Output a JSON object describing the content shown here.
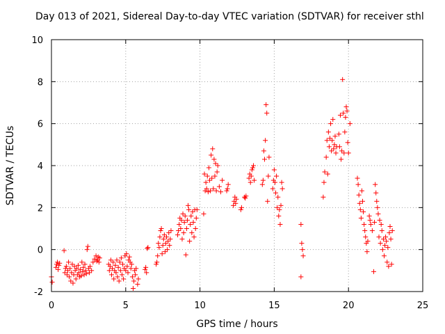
{
  "chart_data": {
    "type": "scatter",
    "title": "Day 013 of 2021, Sidereal Day-to-day VTEC variation (SDTVAR) for receiver sthl",
    "xlabel": "GPS time / hours",
    "ylabel": "SDTVAR / TECUs",
    "xlim": [
      0,
      25
    ],
    "ylim": [
      -2,
      10
    ],
    "xticks": [
      0,
      5,
      10,
      15,
      20,
      25
    ],
    "yticks": [
      -2,
      0,
      2,
      4,
      6,
      8,
      10
    ],
    "grid": true,
    "marker": "+",
    "marker_color": "#ff0000",
    "series": [
      {
        "name": "SDTVAR",
        "points": [
          [
            0.0,
            -1.3
          ],
          [
            0.05,
            -1.55
          ],
          [
            0.3,
            -0.85
          ],
          [
            0.35,
            -0.7
          ],
          [
            0.4,
            -0.6
          ],
          [
            0.45,
            -0.95
          ],
          [
            0.5,
            -0.75
          ],
          [
            0.55,
            -0.65
          ],
          [
            0.85,
            -0.05
          ],
          [
            0.9,
            -1.1
          ],
          [
            0.95,
            -0.9
          ],
          [
            1.0,
            -0.8
          ],
          [
            1.05,
            -1.2
          ],
          [
            1.1,
            -1.0
          ],
          [
            1.15,
            -0.6
          ],
          [
            1.2,
            -1.3
          ],
          [
            1.25,
            -0.9
          ],
          [
            1.3,
            -1.5
          ],
          [
            1.35,
            -1.1
          ],
          [
            1.4,
            -0.7
          ],
          [
            1.45,
            -1.6
          ],
          [
            1.5,
            -1.2
          ],
          [
            1.55,
            -0.8
          ],
          [
            1.6,
            -1.0
          ],
          [
            1.65,
            -1.4
          ],
          [
            1.7,
            -0.9
          ],
          [
            1.75,
            -1.2
          ],
          [
            1.8,
            -0.75
          ],
          [
            1.85,
            -1.1
          ],
          [
            1.9,
            -1.3
          ],
          [
            1.95,
            -0.95
          ],
          [
            2.0,
            -1.25
          ],
          [
            2.05,
            -0.6
          ],
          [
            2.1,
            -1.05
          ],
          [
            2.15,
            -0.85
          ],
          [
            2.2,
            -1.2
          ],
          [
            2.25,
            -0.7
          ],
          [
            2.3,
            -1.0
          ],
          [
            2.35,
            -1.15
          ],
          [
            2.4,
            0.0
          ],
          [
            2.45,
            0.15
          ],
          [
            2.5,
            -0.9
          ],
          [
            2.55,
            -1.1
          ],
          [
            2.6,
            -0.8
          ],
          [
            2.7,
            -1.0
          ],
          [
            2.8,
            -0.6
          ],
          [
            2.9,
            -0.45
          ],
          [
            3.0,
            -0.3
          ],
          [
            3.05,
            -0.55
          ],
          [
            3.1,
            -0.5
          ],
          [
            3.15,
            -0.35
          ],
          [
            3.2,
            -0.6
          ],
          [
            3.25,
            -0.4
          ],
          [
            3.85,
            -0.7
          ],
          [
            3.9,
            -1.0
          ],
          [
            3.95,
            -0.8
          ],
          [
            4.0,
            -0.5
          ],
          [
            4.05,
            -1.2
          ],
          [
            4.1,
            -0.9
          ],
          [
            4.15,
            -0.6
          ],
          [
            4.2,
            -1.4
          ],
          [
            4.25,
            -1.0
          ],
          [
            4.3,
            -0.75
          ],
          [
            4.35,
            -1.1
          ],
          [
            4.4,
            -0.5
          ],
          [
            4.45,
            -1.3
          ],
          [
            4.5,
            -0.85
          ],
          [
            4.55,
            -1.5
          ],
          [
            4.6,
            -0.6
          ],
          [
            4.65,
            -1.0
          ],
          [
            4.7,
            -0.4
          ],
          [
            4.75,
            -1.2
          ],
          [
            4.8,
            -0.7
          ],
          [
            4.85,
            -1.4
          ],
          [
            4.9,
            -0.9
          ],
          [
            4.95,
            -0.3
          ],
          [
            5.0,
            -1.0
          ],
          [
            5.05,
            -0.2
          ],
          [
            5.1,
            -0.8
          ],
          [
            5.15,
            -1.1
          ],
          [
            5.2,
            -0.5
          ],
          [
            5.25,
            -0.35
          ],
          [
            5.3,
            -0.6
          ],
          [
            5.35,
            -0.9
          ],
          [
            5.4,
            -0.7
          ],
          [
            5.45,
            -1.3
          ],
          [
            5.5,
            -1.85
          ],
          [
            5.55,
            -1.5
          ],
          [
            5.6,
            -1.0
          ],
          [
            5.65,
            -1.2
          ],
          [
            5.7,
            -0.9
          ],
          [
            5.8,
            -1.65
          ],
          [
            5.85,
            -1.4
          ],
          [
            6.3,
            -0.95
          ],
          [
            6.35,
            -0.85
          ],
          [
            6.4,
            -1.1
          ],
          [
            6.45,
            0.05
          ],
          [
            6.5,
            0.1
          ],
          [
            7.05,
            -0.7
          ],
          [
            7.1,
            -0.6
          ],
          [
            7.15,
            -0.3
          ],
          [
            7.2,
            0.3
          ],
          [
            7.25,
            0.1
          ],
          [
            7.3,
            0.6
          ],
          [
            7.35,
            0.9
          ],
          [
            7.4,
            1.0
          ],
          [
            7.45,
            -0.2
          ],
          [
            7.5,
            0.2
          ],
          [
            7.55,
            0.5
          ],
          [
            7.6,
            0.7
          ],
          [
            7.65,
            -0.1
          ],
          [
            7.7,
            0.3
          ],
          [
            7.75,
            0.6
          ],
          [
            7.8,
            0.0
          ],
          [
            7.85,
            0.4
          ],
          [
            7.9,
            0.8
          ],
          [
            7.95,
            0.2
          ],
          [
            8.0,
            0.5
          ],
          [
            8.05,
            0.9
          ],
          [
            8.5,
            0.7
          ],
          [
            8.55,
            0.9
          ],
          [
            8.6,
            1.2
          ],
          [
            8.65,
            1.5
          ],
          [
            8.7,
            1.0
          ],
          [
            8.75,
            1.4
          ],
          [
            8.8,
            0.5
          ],
          [
            8.85,
            1.7
          ],
          [
            8.9,
            0.8
          ],
          [
            8.95,
            1.3
          ],
          [
            9.0,
            1.6
          ],
          [
            9.05,
            -0.25
          ],
          [
            9.1,
            1.0
          ],
          [
            9.15,
            1.4
          ],
          [
            9.2,
            2.1
          ],
          [
            9.25,
            1.9
          ],
          [
            9.3,
            0.4
          ],
          [
            9.35,
            1.2
          ],
          [
            9.4,
            1.6
          ],
          [
            9.45,
            0.8
          ],
          [
            9.5,
            1.8
          ],
          [
            9.55,
            1.3
          ],
          [
            9.6,
            0.6
          ],
          [
            9.65,
            1.9
          ],
          [
            9.7,
            1.0
          ],
          [
            9.75,
            1.5
          ],
          [
            9.8,
            1.9
          ],
          [
            10.25,
            1.7
          ],
          [
            10.3,
            3.6
          ],
          [
            10.35,
            2.8
          ],
          [
            10.4,
            3.2
          ],
          [
            10.45,
            2.9
          ],
          [
            10.5,
            3.5
          ],
          [
            10.55,
            2.75
          ],
          [
            10.6,
            3.9
          ],
          [
            10.65,
            3.3
          ],
          [
            10.7,
            2.8
          ],
          [
            10.75,
            4.5
          ],
          [
            10.8,
            3.4
          ],
          [
            10.85,
            4.8
          ],
          [
            10.9,
            2.9
          ],
          [
            10.95,
            4.3
          ],
          [
            11.0,
            3.5
          ],
          [
            11.05,
            4.1
          ],
          [
            11.1,
            2.8
          ],
          [
            11.15,
            3.7
          ],
          [
            11.2,
            4.0
          ],
          [
            11.3,
            3.0
          ],
          [
            11.4,
            2.75
          ],
          [
            11.5,
            3.3
          ],
          [
            11.8,
            2.8
          ],
          [
            11.85,
            2.9
          ],
          [
            11.9,
            3.1
          ],
          [
            12.25,
            2.1
          ],
          [
            12.3,
            2.3
          ],
          [
            12.35,
            2.5
          ],
          [
            12.4,
            2.2
          ],
          [
            12.45,
            2.4
          ],
          [
            12.75,
            1.9
          ],
          [
            12.8,
            2.0
          ],
          [
            13.0,
            2.5
          ],
          [
            13.05,
            2.45
          ],
          [
            13.1,
            2.55
          ],
          [
            13.3,
            3.4
          ],
          [
            13.35,
            3.6
          ],
          [
            13.4,
            3.2
          ],
          [
            13.45,
            3.5
          ],
          [
            13.5,
            3.8
          ],
          [
            13.55,
            3.9
          ],
          [
            13.6,
            4.0
          ],
          [
            13.65,
            3.3
          ],
          [
            14.2,
            3.1
          ],
          [
            14.25,
            3.3
          ],
          [
            14.3,
            4.7
          ],
          [
            14.35,
            4.3
          ],
          [
            14.4,
            5.2
          ],
          [
            14.45,
            6.9
          ],
          [
            14.5,
            6.5
          ],
          [
            14.55,
            2.3
          ],
          [
            14.6,
            3.5
          ],
          [
            14.65,
            4.4
          ],
          [
            14.9,
            2.9
          ],
          [
            14.95,
            3.3
          ],
          [
            15.0,
            3.8
          ],
          [
            15.05,
            3.2
          ],
          [
            15.1,
            2.7
          ],
          [
            15.15,
            3.5
          ],
          [
            15.2,
            2.0
          ],
          [
            15.25,
            2.5
          ],
          [
            15.3,
            1.6
          ],
          [
            15.35,
            1.9
          ],
          [
            15.4,
            1.2
          ],
          [
            15.45,
            2.1
          ],
          [
            15.5,
            3.2
          ],
          [
            15.55,
            2.9
          ],
          [
            16.8,
            1.2
          ],
          [
            16.85,
            0.3
          ],
          [
            16.9,
            0.0
          ],
          [
            16.95,
            -0.3
          ],
          [
            16.8,
            -1.3
          ],
          [
            18.3,
            2.5
          ],
          [
            18.35,
            3.2
          ],
          [
            18.4,
            3.7
          ],
          [
            18.5,
            4.4
          ],
          [
            18.55,
            5.2
          ],
          [
            18.6,
            3.6
          ],
          [
            18.65,
            5.6
          ],
          [
            18.7,
            4.9
          ],
          [
            18.75,
            5.3
          ],
          [
            18.8,
            6.0
          ],
          [
            18.85,
            4.7
          ],
          [
            18.9,
            5.2
          ],
          [
            18.95,
            6.2
          ],
          [
            19.0,
            4.8
          ],
          [
            19.05,
            5.0
          ],
          [
            19.1,
            5.4
          ],
          [
            19.15,
            4.6
          ],
          [
            19.2,
            4.9
          ],
          [
            19.35,
            5.5
          ],
          [
            19.4,
            4.9
          ],
          [
            19.45,
            6.4
          ],
          [
            19.5,
            4.3
          ],
          [
            19.55,
            4.7
          ],
          [
            19.6,
            8.1
          ],
          [
            19.65,
            6.5
          ],
          [
            19.7,
            4.6
          ],
          [
            19.75,
            5.6
          ],
          [
            19.8,
            6.3
          ],
          [
            19.85,
            6.8
          ],
          [
            19.9,
            6.6
          ],
          [
            19.95,
            5.1
          ],
          [
            20.0,
            4.6
          ],
          [
            20.1,
            6.0
          ],
          [
            20.6,
            3.4
          ],
          [
            20.65,
            3.1
          ],
          [
            20.7,
            2.6
          ],
          [
            20.75,
            2.2
          ],
          [
            20.8,
            1.9
          ],
          [
            20.85,
            1.5
          ],
          [
            20.9,
            2.8
          ],
          [
            20.95,
            2.3
          ],
          [
            21.0,
            1.8
          ],
          [
            21.05,
            1.2
          ],
          [
            21.1,
            0.9
          ],
          [
            21.15,
            0.6
          ],
          [
            21.2,
            0.3
          ],
          [
            21.25,
            -0.1
          ],
          [
            21.3,
            0.4
          ],
          [
            21.4,
            1.6
          ],
          [
            21.45,
            1.4
          ],
          [
            21.5,
            1.2
          ],
          [
            21.6,
            0.9
          ],
          [
            21.7,
            -1.05
          ],
          [
            21.75,
            1.3
          ],
          [
            21.8,
            3.1
          ],
          [
            21.85,
            2.7
          ],
          [
            21.9,
            2.3
          ],
          [
            21.95,
            2.0
          ],
          [
            22.0,
            1.7
          ],
          [
            22.05,
            0.6
          ],
          [
            22.1,
            1.4
          ],
          [
            22.15,
            0.3
          ],
          [
            22.2,
            1.2
          ],
          [
            22.25,
            0.9
          ],
          [
            22.3,
            0.0
          ],
          [
            22.35,
            0.5
          ],
          [
            22.4,
            -0.3
          ],
          [
            22.45,
            0.2
          ],
          [
            22.5,
            0.6
          ],
          [
            22.55,
            0.4
          ],
          [
            22.6,
            -0.6
          ],
          [
            22.65,
            0.1
          ],
          [
            22.7,
            -0.8
          ],
          [
            22.75,
            0.8
          ],
          [
            22.8,
            1.1
          ],
          [
            22.85,
            0.5
          ],
          [
            22.9,
            -0.7
          ],
          [
            22.95,
            0.9
          ]
        ]
      }
    ]
  }
}
